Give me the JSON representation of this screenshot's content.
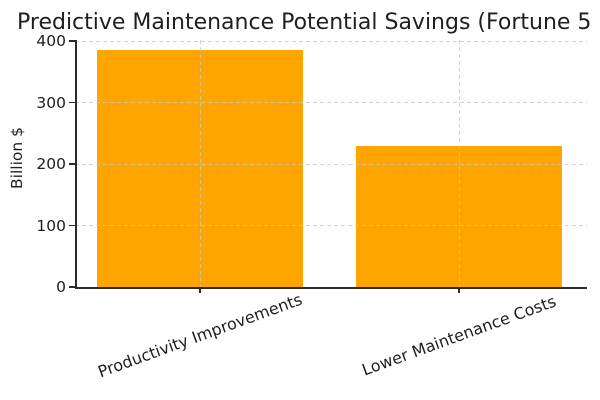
{
  "chart_data": {
    "type": "bar",
    "title": "Predictive Maintenance Potential Savings (Fortune 5",
    "title_note": "title clipped at right edge of image",
    "ylabel": "Billion $",
    "xlabel": "",
    "categories": [
      "Productivity Improvements",
      "Lower Maintenance Costs"
    ],
    "values": [
      385,
      230
    ],
    "yticks": [
      0,
      100,
      200,
      300,
      400
    ],
    "ylim": [
      0,
      402
    ],
    "grid": true,
    "grid_style": "dashed, drawn above bars",
    "legend_position": "none",
    "bar_color": "#ffa500",
    "grid_color": "#c8c8c8",
    "spine_color": "#2a2a2a",
    "text_color": "#1f1f1f",
    "background": "#ffffff",
    "xtick_rotation_deg": -20
  }
}
